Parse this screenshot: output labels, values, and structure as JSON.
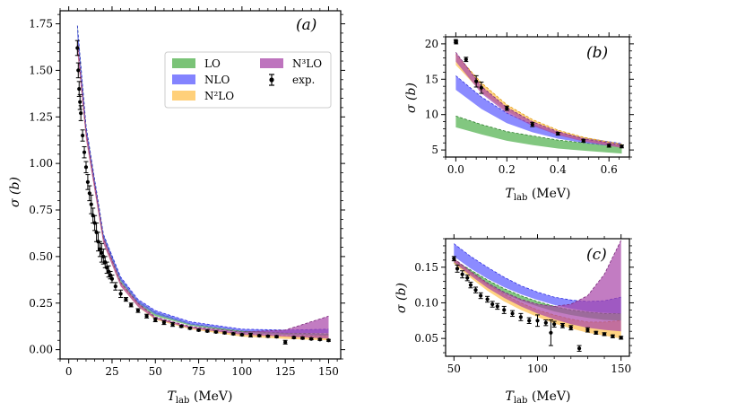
{
  "chart_data": [
    {
      "type": "line",
      "panel": "a",
      "panel_label": "(a)",
      "xlabel": "T_lab (MeV)",
      "xlabel_main": "T",
      "xlabel_sub": "lab",
      "xlabel_unit": " (MeV)",
      "ylabel": "σ (b)",
      "xlim": [
        -5,
        157
      ],
      "ylim": [
        -0.05,
        1.82
      ],
      "xticks": [
        0,
        25,
        50,
        75,
        100,
        125,
        150
      ],
      "xtick_labels": [
        "0",
        "25",
        "50",
        "75",
        "100",
        "125",
        "150"
      ],
      "yticks": [
        0.0,
        0.25,
        0.5,
        0.75,
        1.0,
        1.25,
        1.5,
        1.75
      ],
      "ytick_labels": [
        "0.00",
        "0.25",
        "0.50",
        "0.75",
        "1.00",
        "1.25",
        "1.50",
        "1.75"
      ],
      "legend": {
        "position": "upper-right",
        "entries": [
          {
            "label": "LO",
            "color": "#4daf4a"
          },
          {
            "label": "NLO",
            "color": "#5a5aff"
          },
          {
            "label": "N²LO",
            "color": "#ffc04d"
          },
          {
            "label": "N³LO",
            "color": "#a845a8"
          },
          {
            "label": "exp.",
            "color": "#000000"
          }
        ]
      },
      "series": [
        {
          "name": "LO",
          "x": [
            5,
            10,
            20,
            30,
            40,
            50,
            70,
            100,
            125,
            150
          ],
          "lower": [
            1.7,
            1.16,
            0.59,
            0.36,
            0.24,
            0.18,
            0.13,
            0.09,
            0.08,
            0.075
          ],
          "upper": [
            1.74,
            1.2,
            0.62,
            0.38,
            0.26,
            0.2,
            0.14,
            0.1,
            0.09,
            0.085
          ]
        },
        {
          "name": "NLO",
          "x": [
            5,
            10,
            20,
            30,
            40,
            50,
            70,
            100,
            125,
            150
          ],
          "lower": [
            1.68,
            1.16,
            0.59,
            0.37,
            0.25,
            0.19,
            0.135,
            0.1,
            0.09,
            0.09
          ],
          "upper": [
            1.74,
            1.2,
            0.62,
            0.39,
            0.27,
            0.21,
            0.15,
            0.11,
            0.105,
            0.11
          ]
        },
        {
          "name": "N²LO",
          "x": [
            5,
            10,
            20,
            30,
            40,
            50,
            70,
            100,
            125,
            150
          ],
          "lower": [
            1.6,
            1.13,
            0.57,
            0.34,
            0.23,
            0.16,
            0.11,
            0.07,
            0.058,
            0.05
          ],
          "upper": [
            1.66,
            1.17,
            0.6,
            0.36,
            0.25,
            0.17,
            0.12,
            0.085,
            0.075,
            0.075
          ]
        },
        {
          "name": "N³LO",
          "x": [
            5,
            10,
            20,
            30,
            40,
            50,
            70,
            100,
            125,
            150
          ],
          "lower": [
            1.6,
            1.13,
            0.57,
            0.34,
            0.23,
            0.165,
            0.115,
            0.08,
            0.07,
            0.06
          ],
          "upper": [
            1.66,
            1.17,
            0.6,
            0.36,
            0.25,
            0.175,
            0.125,
            0.095,
            0.105,
            0.18
          ]
        }
      ],
      "exp": {
        "x": [
          5,
          5.5,
          6,
          6.5,
          7,
          8,
          9,
          10,
          11,
          12,
          13,
          14,
          15,
          16,
          17,
          18,
          19,
          20,
          21,
          22,
          23,
          24,
          25,
          27,
          30,
          33,
          36,
          40,
          45,
          50,
          55,
          60,
          65,
          70,
          75,
          80,
          85,
          90,
          95,
          100,
          105,
          110,
          115,
          120,
          125,
          130,
          135,
          140,
          145,
          150
        ],
        "y": [
          1.62,
          1.5,
          1.4,
          1.33,
          1.27,
          1.15,
          1.06,
          0.98,
          0.9,
          0.84,
          0.78,
          0.72,
          0.68,
          0.63,
          0.58,
          0.54,
          0.52,
          0.5,
          0.47,
          0.44,
          0.42,
          0.4,
          0.38,
          0.34,
          0.3,
          0.27,
          0.24,
          0.21,
          0.18,
          0.16,
          0.145,
          0.135,
          0.125,
          0.115,
          0.105,
          0.1,
          0.095,
          0.09,
          0.085,
          0.08,
          0.078,
          0.075,
          0.072,
          0.07,
          0.04,
          0.065,
          0.062,
          0.058,
          0.055,
          0.05
        ],
        "err": [
          0.04,
          0.04,
          0.04,
          0.04,
          0.04,
          0.03,
          0.03,
          0.03,
          0.04,
          0.04,
          0.05,
          0.04,
          0.04,
          0.05,
          0.05,
          0.04,
          0.05,
          0.04,
          0.03,
          0.03,
          0.03,
          0.02,
          0.02,
          0.02,
          0.02,
          0.01,
          0.01,
          0.01,
          0.01,
          0.01,
          0.01,
          0.01,
          0.005,
          0.005,
          0.005,
          0.005,
          0.005,
          0.005,
          0.005,
          0.005,
          0.01,
          0.005,
          0.005,
          0.005,
          0.01,
          0.005,
          0.005,
          0.005,
          0.005,
          0.005
        ]
      }
    },
    {
      "type": "line",
      "panel": "b",
      "panel_label": "(b)",
      "xlabel": "T_lab (MeV)",
      "xlabel_main": "T",
      "xlabel_sub": "lab",
      "xlabel_unit": " (MeV)",
      "ylabel": "σ (b)",
      "xlim": [
        -0.04,
        0.68
      ],
      "ylim": [
        4,
        21
      ],
      "xticks": [
        0.0,
        0.2,
        0.4,
        0.6
      ],
      "xtick_labels": [
        "0.0",
        "0.2",
        "0.4",
        "0.6"
      ],
      "yticks": [
        5,
        10,
        15,
        20
      ],
      "ytick_labels": [
        "5",
        "10",
        "15",
        "20"
      ],
      "series": [
        {
          "name": "LO",
          "x": [
            0.0,
            0.1,
            0.2,
            0.3,
            0.4,
            0.5,
            0.65
          ],
          "lower": [
            8.2,
            7.2,
            6.3,
            5.7,
            5.2,
            4.9,
            4.5
          ],
          "upper": [
            9.8,
            8.6,
            7.6,
            7.0,
            6.4,
            6.0,
            5.5
          ]
        },
        {
          "name": "NLO",
          "x": [
            0.0,
            0.1,
            0.2,
            0.3,
            0.4,
            0.5,
            0.65
          ],
          "lower": [
            13.5,
            10.8,
            8.8,
            7.5,
            6.6,
            6.0,
            5.4
          ],
          "upper": [
            15.5,
            12.5,
            10.2,
            8.6,
            7.5,
            6.7,
            5.9
          ]
        },
        {
          "name": "N²LO",
          "x": [
            0.0,
            0.1,
            0.2,
            0.3,
            0.4,
            0.5,
            0.65
          ],
          "lower": [
            17.0,
            13.2,
            10.5,
            8.6,
            7.2,
            6.3,
            5.3
          ],
          "upper": [
            18.5,
            14.5,
            11.4,
            9.3,
            7.8,
            6.8,
            5.8
          ]
        },
        {
          "name": "N³LO",
          "x": [
            0.0,
            0.1,
            0.2,
            0.3,
            0.4,
            0.5,
            0.65
          ],
          "lower": [
            17.5,
            13.0,
            10.2,
            8.4,
            7.1,
            6.2,
            5.3
          ],
          "upper": [
            18.8,
            14.0,
            11.0,
            9.0,
            7.6,
            6.6,
            5.7
          ]
        }
      ],
      "exp": {
        "x": [
          0.0,
          0.001,
          0.04,
          0.08,
          0.1,
          0.2,
          0.3,
          0.4,
          0.5,
          0.6,
          0.65
        ],
        "y": [
          20.4,
          20.2,
          17.8,
          14.7,
          13.8,
          10.9,
          8.6,
          7.3,
          6.3,
          5.6,
          5.5
        ],
        "err": [
          0.2,
          0.2,
          0.3,
          0.8,
          0.8,
          0.3,
          0.3,
          0.2,
          0.2,
          0.2,
          0.2
        ]
      }
    },
    {
      "type": "line",
      "panel": "c",
      "panel_label": "(c)",
      "xlabel": "T_lab (MeV)",
      "xlabel_main": "T",
      "xlabel_sub": "lab",
      "xlabel_unit": " (MeV)",
      "ylabel": "σ (b)",
      "xlim": [
        45,
        155
      ],
      "ylim": [
        0.025,
        0.19
      ],
      "xticks": [
        50,
        100,
        150
      ],
      "xtick_labels": [
        "50",
        "100",
        "150"
      ],
      "yticks": [
        0.05,
        0.1,
        0.15
      ],
      "ytick_labels": [
        "0.05",
        "0.10",
        "0.15"
      ],
      "series": [
        {
          "name": "LO",
          "x": [
            50,
            60,
            70,
            80,
            90,
            100,
            110,
            120,
            130,
            140,
            150
          ],
          "lower": [
            0.155,
            0.14,
            0.125,
            0.113,
            0.103,
            0.095,
            0.088,
            0.083,
            0.079,
            0.076,
            0.075
          ],
          "upper": [
            0.16,
            0.146,
            0.132,
            0.12,
            0.11,
            0.102,
            0.095,
            0.09,
            0.087,
            0.085,
            0.085
          ]
        },
        {
          "name": "NLO",
          "x": [
            50,
            60,
            70,
            80,
            90,
            100,
            110,
            120,
            130,
            140,
            150
          ],
          "lower": [
            0.165,
            0.148,
            0.134,
            0.122,
            0.112,
            0.104,
            0.097,
            0.092,
            0.088,
            0.086,
            0.085
          ],
          "upper": [
            0.183,
            0.165,
            0.15,
            0.136,
            0.124,
            0.115,
            0.108,
            0.104,
            0.102,
            0.103,
            0.108
          ]
        },
        {
          "name": "N²LO",
          "x": [
            50,
            60,
            70,
            80,
            90,
            100,
            110,
            120,
            130,
            140,
            150
          ],
          "lower": [
            0.155,
            0.135,
            0.117,
            0.102,
            0.09,
            0.08,
            0.071,
            0.064,
            0.058,
            0.054,
            0.05
          ],
          "upper": [
            0.162,
            0.143,
            0.126,
            0.112,
            0.1,
            0.09,
            0.083,
            0.077,
            0.073,
            0.073,
            0.075
          ]
        },
        {
          "name": "N³LO",
          "x": [
            50,
            60,
            70,
            80,
            90,
            100,
            110,
            120,
            130,
            140,
            150
          ],
          "lower": [
            0.157,
            0.138,
            0.121,
            0.107,
            0.095,
            0.085,
            0.077,
            0.07,
            0.065,
            0.062,
            0.06
          ],
          "upper": [
            0.162,
            0.144,
            0.128,
            0.115,
            0.105,
            0.098,
            0.095,
            0.098,
            0.11,
            0.14,
            0.188
          ]
        }
      ],
      "exp": {
        "x": [
          50,
          52,
          55,
          58,
          60,
          63,
          66,
          70,
          73,
          76,
          80,
          85,
          90,
          95,
          100,
          105,
          108,
          110,
          115,
          120,
          125,
          130,
          135,
          140,
          145,
          150
        ],
        "y": [
          0.162,
          0.148,
          0.14,
          0.135,
          0.125,
          0.118,
          0.11,
          0.105,
          0.098,
          0.095,
          0.09,
          0.085,
          0.08,
          0.075,
          0.075,
          0.072,
          0.058,
          0.07,
          0.068,
          0.065,
          0.036,
          0.062,
          0.058,
          0.056,
          0.053,
          0.051
        ],
        "err": [
          0.003,
          0.005,
          0.005,
          0.004,
          0.004,
          0.004,
          0.004,
          0.004,
          0.004,
          0.004,
          0.005,
          0.004,
          0.005,
          0.004,
          0.008,
          0.004,
          0.018,
          0.004,
          0.003,
          0.003,
          0.004,
          0.003,
          0.002,
          0.002,
          0.002,
          0.002
        ]
      }
    }
  ]
}
